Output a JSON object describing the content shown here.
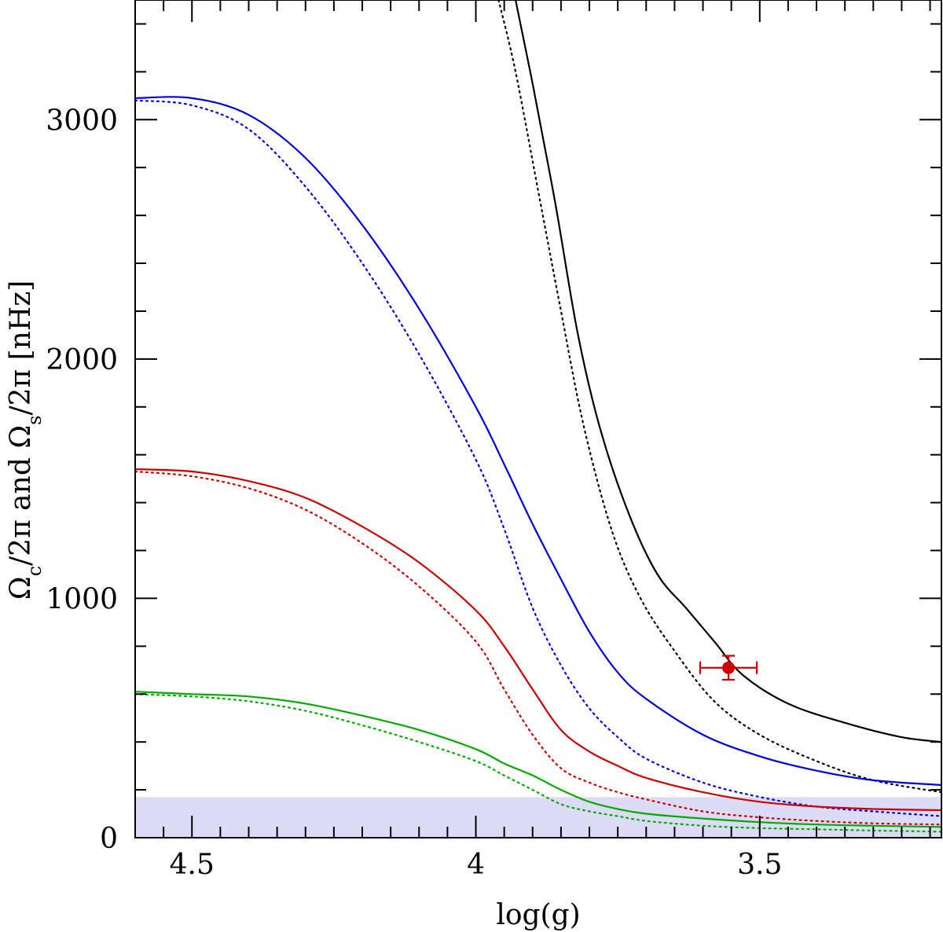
{
  "chart_data": {
    "type": "line",
    "xlabel": "log(g)",
    "ylabel": "Ω_c/2π and Ω_s/2π [nHz]",
    "xlim": [
      4.6,
      3.18
    ],
    "ylim": [
      0,
      3500
    ],
    "x_ticks": [
      4.5,
      4,
      3.5
    ],
    "x_tick_labels": [
      "4.5",
      "4",
      "3.5"
    ],
    "y_ticks": [
      0,
      1000,
      2000,
      3000
    ],
    "y_tick_labels": [
      "0",
      "1000",
      "2000",
      "3000"
    ],
    "shaded_band": {
      "y_range": [
        0,
        170
      ],
      "color": "#dcdcf8"
    },
    "series": [
      {
        "color": "#000000",
        "dash": "solid",
        "x": [
          3.93,
          3.9,
          3.86,
          3.82,
          3.78,
          3.73,
          3.68,
          3.63,
          3.58,
          3.53,
          3.45,
          3.35,
          3.25,
          3.18
        ],
        "y": [
          3500,
          3150,
          2650,
          2100,
          1700,
          1350,
          1100,
          960,
          820,
          680,
          560,
          480,
          420,
          400
        ]
      },
      {
        "color": "#000000",
        "dash": "dotted",
        "x": [
          3.96,
          3.93,
          3.89,
          3.85,
          3.81,
          3.76,
          3.71,
          3.65,
          3.58,
          3.5,
          3.4,
          3.3,
          3.18
        ],
        "y": [
          3500,
          3200,
          2700,
          2200,
          1720,
          1280,
          1000,
          780,
          570,
          430,
          320,
          240,
          190
        ]
      },
      {
        "color": "#0000dd",
        "dash": "solid",
        "x": [
          4.6,
          4.5,
          4.4,
          4.3,
          4.2,
          4.1,
          4.0,
          3.95,
          3.9,
          3.85,
          3.8,
          3.75,
          3.7,
          3.6,
          3.5,
          3.4,
          3.3,
          3.18
        ],
        "y": [
          3090,
          3090,
          3020,
          2840,
          2560,
          2210,
          1800,
          1560,
          1310,
          1080,
          860,
          690,
          580,
          430,
          340,
          280,
          240,
          220
        ]
      },
      {
        "color": "#0000dd",
        "dash": "dotted",
        "x": [
          4.6,
          4.5,
          4.4,
          4.3,
          4.2,
          4.1,
          4.0,
          3.95,
          3.9,
          3.85,
          3.8,
          3.75,
          3.7,
          3.6,
          3.5,
          3.4,
          3.3,
          3.18
        ],
        "y": [
          3080,
          3060,
          2960,
          2720,
          2400,
          2020,
          1580,
          1290,
          960,
          720,
          540,
          420,
          330,
          230,
          170,
          130,
          110,
          90
        ]
      },
      {
        "color": "#cc0000",
        "dash": "solid",
        "x": [
          4.6,
          4.5,
          4.4,
          4.3,
          4.2,
          4.1,
          4.0,
          3.95,
          3.9,
          3.85,
          3.8,
          3.75,
          3.7,
          3.6,
          3.5,
          3.4,
          3.3,
          3.18
        ],
        "y": [
          1540,
          1530,
          1490,
          1420,
          1300,
          1150,
          950,
          800,
          620,
          450,
          360,
          300,
          250,
          190,
          150,
          130,
          120,
          115
        ]
      },
      {
        "color": "#cc0000",
        "dash": "dotted",
        "x": [
          4.6,
          4.5,
          4.4,
          4.3,
          4.2,
          4.1,
          4.0,
          3.95,
          3.9,
          3.85,
          3.8,
          3.75,
          3.7,
          3.6,
          3.5,
          3.4,
          3.3,
          3.18
        ],
        "y": [
          1530,
          1510,
          1460,
          1370,
          1230,
          1050,
          820,
          620,
          430,
          290,
          230,
          190,
          160,
          110,
          85,
          70,
          60,
          55
        ]
      },
      {
        "color": "#00aa00",
        "dash": "solid",
        "x": [
          4.6,
          4.5,
          4.4,
          4.3,
          4.2,
          4.1,
          4.0,
          3.95,
          3.9,
          3.85,
          3.8,
          3.75,
          3.7,
          3.6,
          3.5,
          3.4,
          3.3,
          3.18
        ],
        "y": [
          610,
          600,
          590,
          560,
          510,
          450,
          370,
          310,
          260,
          200,
          150,
          120,
          100,
          80,
          65,
          55,
          50,
          45
        ]
      },
      {
        "color": "#00aa00",
        "dash": "dotted",
        "x": [
          4.6,
          4.5,
          4.4,
          4.3,
          4.2,
          4.1,
          4.0,
          3.95,
          3.9,
          3.85,
          3.8,
          3.75,
          3.7,
          3.6,
          3.5,
          3.4,
          3.3,
          3.18
        ],
        "y": [
          600,
          590,
          570,
          530,
          470,
          400,
          320,
          260,
          200,
          140,
          110,
          90,
          70,
          50,
          40,
          35,
          30,
          25
        ]
      }
    ],
    "point": {
      "x": 3.555,
      "y": 710,
      "xerr": 0.05,
      "yerr": 50,
      "color": "#cc0000"
    }
  }
}
